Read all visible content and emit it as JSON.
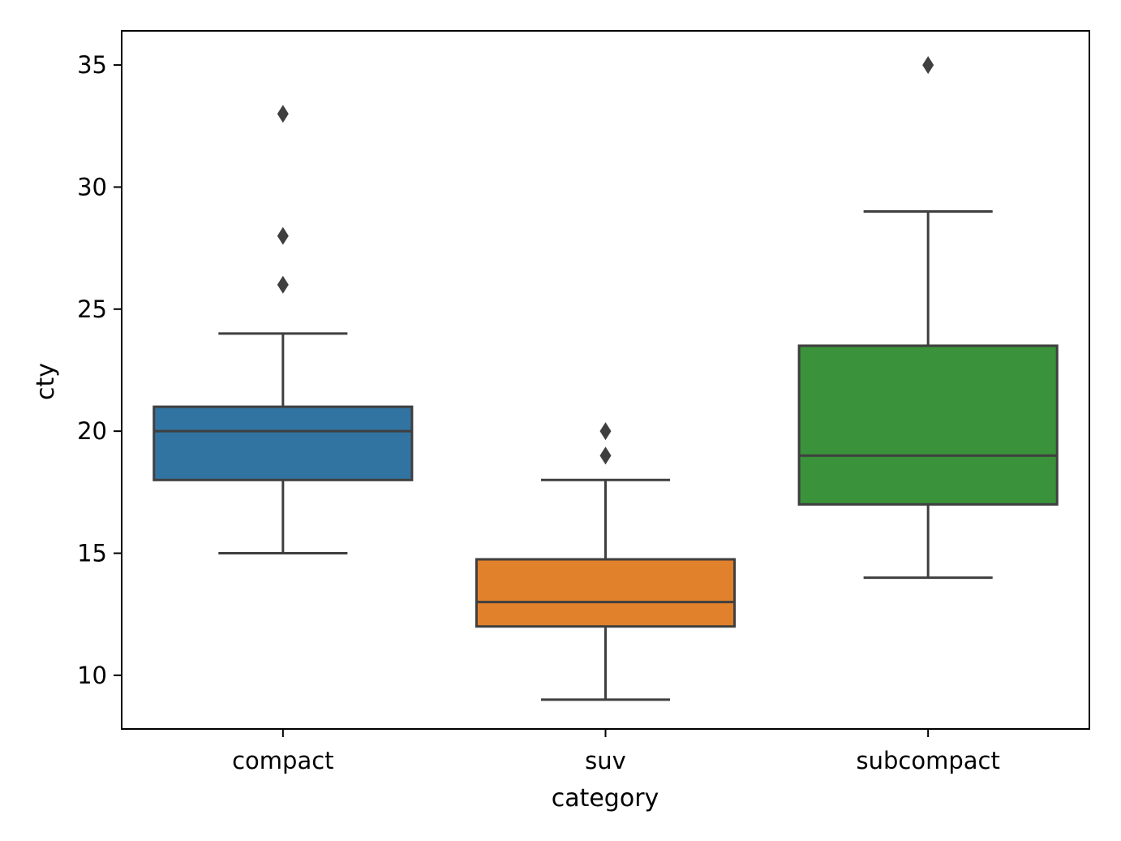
{
  "chart_data": {
    "type": "box",
    "xlabel": "category",
    "ylabel": "cty",
    "ylim": [
      7.8,
      36.4
    ],
    "yticks": [
      10,
      15,
      20,
      25,
      30,
      35
    ],
    "grid": false,
    "categories": [
      "compact",
      "suv",
      "subcompact"
    ],
    "colors": [
      "#3274a1",
      "#e1812c",
      "#3a923a"
    ],
    "line_color": "#3f3f3f",
    "boxes": [
      {
        "category": "compact",
        "whisker_low": 15,
        "q1": 18,
        "median": 20,
        "q3": 21,
        "whisker_high": 24,
        "outliers": [
          26,
          28,
          33
        ]
      },
      {
        "category": "suv",
        "whisker_low": 9,
        "q1": 12,
        "median": 13,
        "q3": 14.75,
        "whisker_high": 18,
        "outliers": [
          19,
          20
        ]
      },
      {
        "category": "subcompact",
        "whisker_low": 14,
        "q1": 17,
        "median": 19,
        "q3": 23.5,
        "whisker_high": 29,
        "outliers": [
          35
        ]
      }
    ]
  }
}
